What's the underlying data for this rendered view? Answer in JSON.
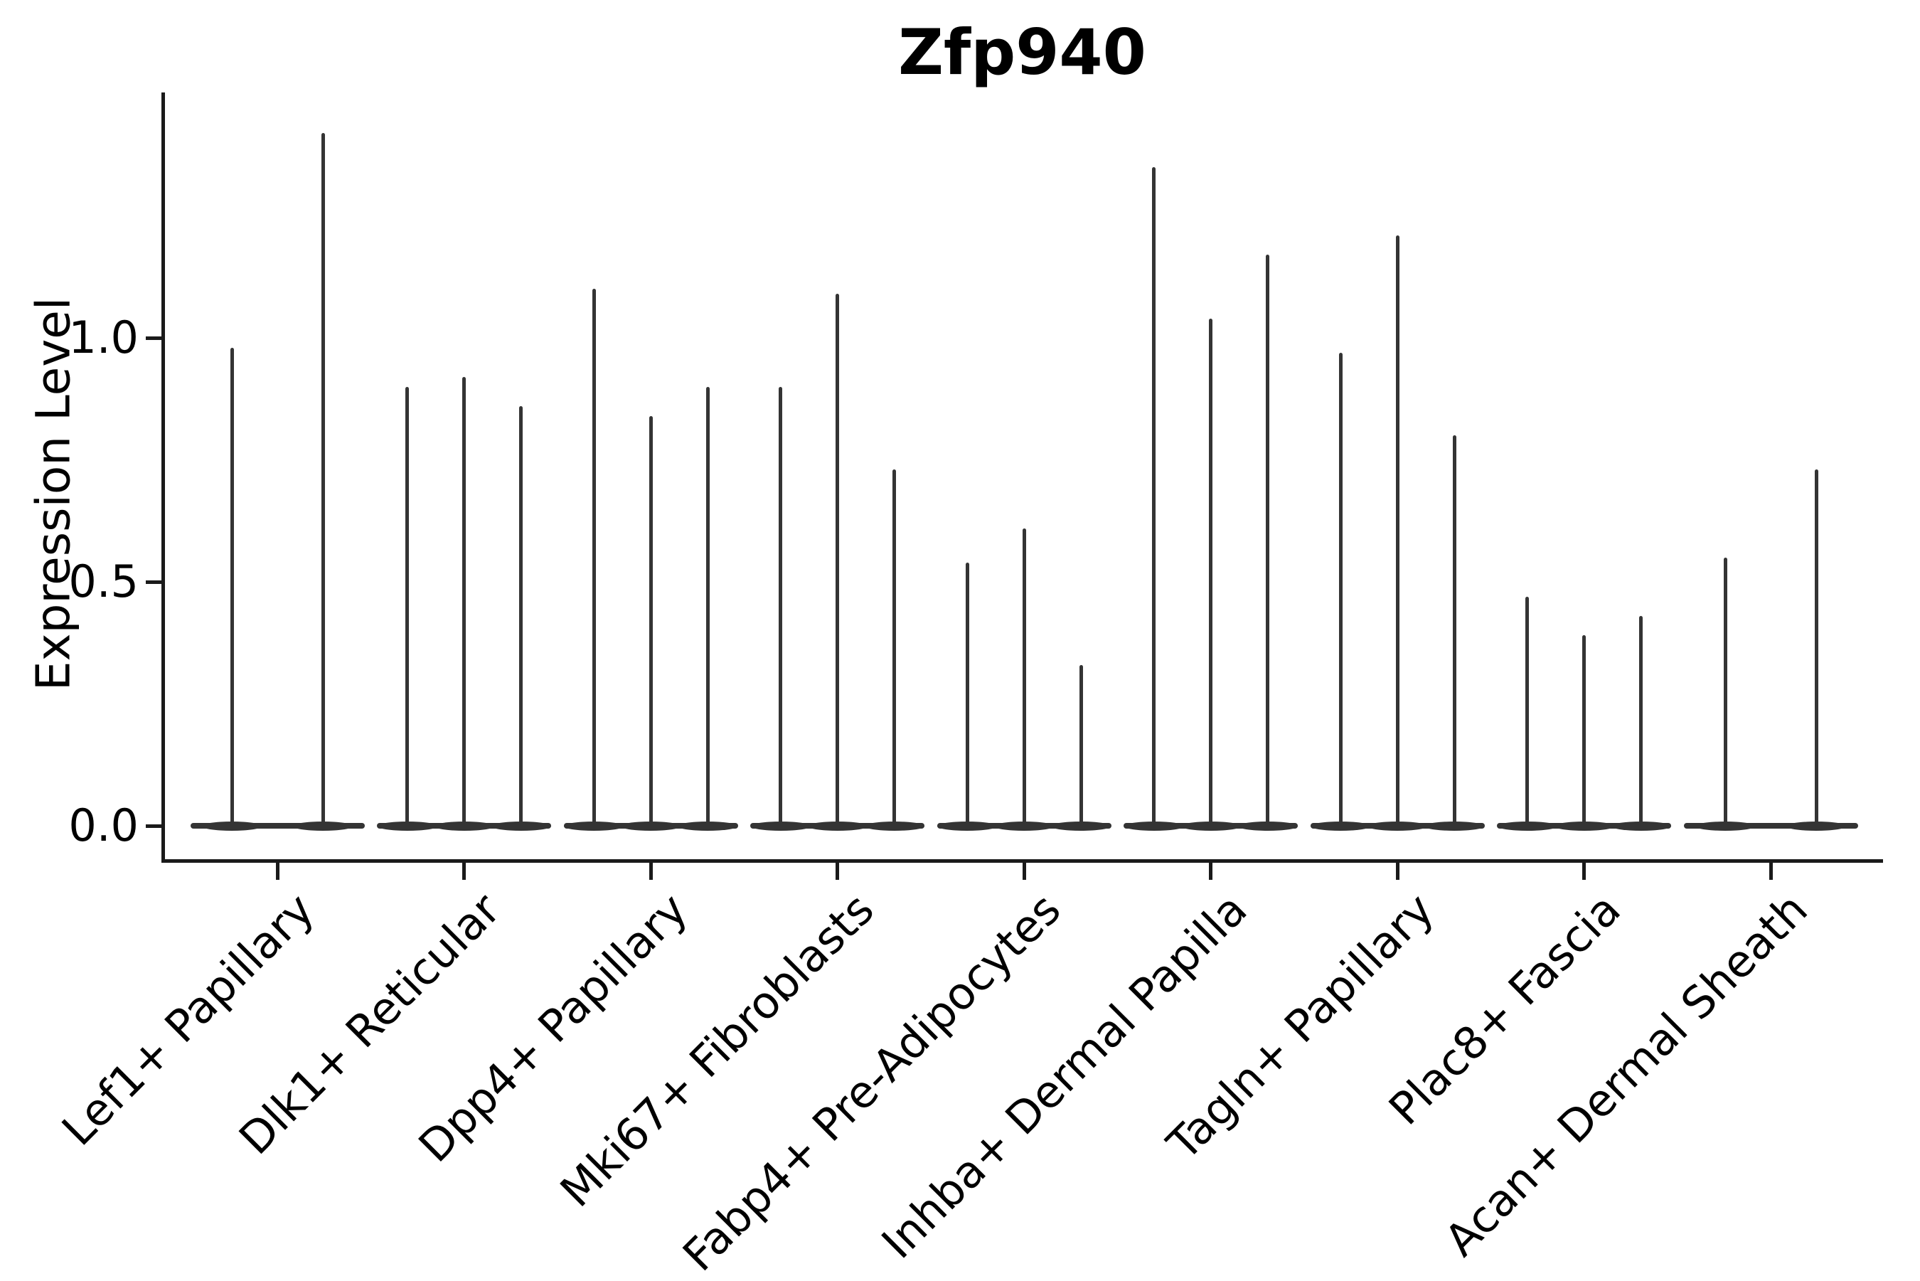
{
  "title": "Zfp940",
  "y_axis": {
    "label": "Expression Level",
    "tick_labels": [
      "0.0",
      "0.5",
      "1.0"
    ]
  },
  "colors": {
    "violin": "#343434",
    "axis": "#1a1a1a",
    "text": "#000000",
    "background": "#ffffff"
  },
  "chart_data": {
    "type": "violin",
    "title": "Zfp940",
    "xlabel": "",
    "ylabel": "Expression Level",
    "ylim": [
      -0.07,
      1.5
    ],
    "yticks": [
      0.0,
      0.5,
      1.0
    ],
    "grid": false,
    "legend": "none",
    "description": "Single-gene expression violin plot; each cell-type group contains 2-3 very thin violins (mass at 0 with a narrow spike to the maximum expression value).",
    "categories": [
      "Lef1+ Papillary",
      "Dlk1+ Reticular",
      "Dpp4+ Papillary",
      "Mki67+ Fibroblasts",
      "Fabp4+ Pre-Adipocytes",
      "Inhba+ Dermal Papilla",
      "Tagln+ Papillary",
      "Plac8+ Fascia",
      "Acan+ Dermal Sheath"
    ],
    "series": [
      {
        "category": "Lef1+ Papillary",
        "violin_max_values": [
          0.98,
          1.42
        ]
      },
      {
        "category": "Dlk1+ Reticular",
        "violin_max_values": [
          0.9,
          0.92,
          0.86
        ]
      },
      {
        "category": "Dpp4+ Papillary",
        "violin_max_values": [
          1.1,
          0.84,
          0.9
        ]
      },
      {
        "category": "Mki67+ Fibroblasts",
        "violin_max_values": [
          0.9,
          1.09,
          0.73
        ]
      },
      {
        "category": "Fabp4+ Pre-Adipocytes",
        "violin_max_values": [
          0.54,
          0.61,
          0.33
        ]
      },
      {
        "category": "Inhba+ Dermal Papilla",
        "violin_max_values": [
          1.35,
          1.04,
          1.17
        ]
      },
      {
        "category": "Tagln+ Papillary",
        "violin_max_values": [
          0.97,
          1.21,
          0.8
        ]
      },
      {
        "category": "Plac8+ Fascia",
        "violin_max_values": [
          0.47,
          0.39,
          0.43
        ]
      },
      {
        "category": "Acan+ Dermal Sheath",
        "violin_max_values": [
          0.55,
          0.73
        ]
      }
    ]
  }
}
